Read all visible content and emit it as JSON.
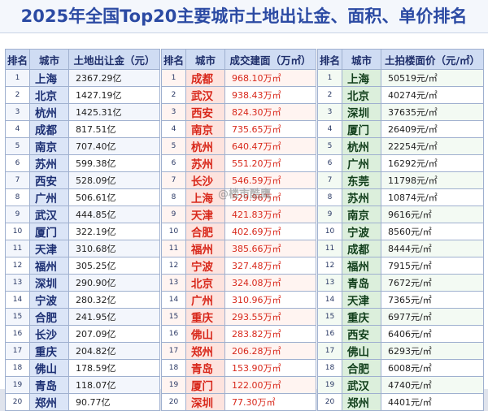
{
  "title": "2025年全国Top20主要城市土地出让金、面积、单价排名",
  "watermark": "@楼市酷鹰",
  "tables": [
    {
      "headers": [
        "排名",
        "城市",
        "土地出让金（元）"
      ],
      "rows": [
        [
          "1",
          "上海",
          "2367.29亿"
        ],
        [
          "2",
          "北京",
          "1427.19亿"
        ],
        [
          "3",
          "杭州",
          "1425.31亿"
        ],
        [
          "4",
          "成都",
          "817.51亿"
        ],
        [
          "5",
          "南京",
          "707.40亿"
        ],
        [
          "6",
          "苏州",
          "599.38亿"
        ],
        [
          "7",
          "西安",
          "528.09亿"
        ],
        [
          "8",
          "广州",
          "506.61亿"
        ],
        [
          "9",
          "武汉",
          "444.85亿"
        ],
        [
          "10",
          "厦门",
          "322.19亿"
        ],
        [
          "11",
          "天津",
          "310.68亿"
        ],
        [
          "12",
          "福州",
          "305.25亿"
        ],
        [
          "13",
          "深圳",
          "290.90亿"
        ],
        [
          "14",
          "宁波",
          "280.32亿"
        ],
        [
          "15",
          "合肥",
          "241.95亿"
        ],
        [
          "16",
          "长沙",
          "207.09亿"
        ],
        [
          "17",
          "重庆",
          "204.82亿"
        ],
        [
          "18",
          "佛山",
          "178.59亿"
        ],
        [
          "19",
          "青岛",
          "118.07亿"
        ],
        [
          "20",
          "郑州",
          "90.77亿"
        ]
      ]
    },
    {
      "headers": [
        "排名",
        "城市",
        "成交建面（万㎡）"
      ],
      "rows": [
        [
          "1",
          "成都",
          "968.10万㎡"
        ],
        [
          "2",
          "武汉",
          "938.43万㎡"
        ],
        [
          "3",
          "西安",
          "824.30万㎡"
        ],
        [
          "4",
          "南京",
          "735.65万㎡"
        ],
        [
          "5",
          "杭州",
          "640.47万㎡"
        ],
        [
          "6",
          "苏州",
          "551.20万㎡"
        ],
        [
          "7",
          "长沙",
          "546.59万㎡"
        ],
        [
          "8",
          "上海",
          "529.96万㎡"
        ],
        [
          "9",
          "天津",
          "421.83万㎡"
        ],
        [
          "10",
          "合肥",
          "402.69万㎡"
        ],
        [
          "11",
          "福州",
          "385.66万㎡"
        ],
        [
          "12",
          "宁波",
          "327.48万㎡"
        ],
        [
          "13",
          "北京",
          "324.08万㎡"
        ],
        [
          "14",
          "广州",
          "310.96万㎡"
        ],
        [
          "15",
          "重庆",
          "293.55万㎡"
        ],
        [
          "16",
          "佛山",
          "283.82万㎡"
        ],
        [
          "17",
          "郑州",
          "206.28万㎡"
        ],
        [
          "18",
          "青岛",
          "153.90万㎡"
        ],
        [
          "19",
          "厦门",
          "122.00万㎡"
        ],
        [
          "20",
          "深圳",
          "77.30万㎡"
        ]
      ]
    },
    {
      "headers": [
        "排名",
        "城市",
        "土拍楼面价（元/㎡）"
      ],
      "rows": [
        [
          "1",
          "上海",
          "50519元/㎡"
        ],
        [
          "2",
          "北京",
          "40274元/㎡"
        ],
        [
          "3",
          "深圳",
          "37635元/㎡"
        ],
        [
          "4",
          "厦门",
          "26409元/㎡"
        ],
        [
          "5",
          "杭州",
          "22254元/㎡"
        ],
        [
          "6",
          "广州",
          "16292元/㎡"
        ],
        [
          "7",
          "东莞",
          "11798元/㎡"
        ],
        [
          "8",
          "苏州",
          "10874元/㎡"
        ],
        [
          "9",
          "南京",
          "9616元/㎡"
        ],
        [
          "10",
          "宁波",
          "8560元/㎡"
        ],
        [
          "11",
          "成都",
          "8444元/㎡"
        ],
        [
          "12",
          "福州",
          "7915元/㎡"
        ],
        [
          "13",
          "青岛",
          "7672元/㎡"
        ],
        [
          "14",
          "天津",
          "7365元/㎡"
        ],
        [
          "15",
          "重庆",
          "6977元/㎡"
        ],
        [
          "16",
          "西安",
          "6406元/㎡"
        ],
        [
          "17",
          "佛山",
          "6293元/㎡"
        ],
        [
          "18",
          "合肥",
          "6008元/㎡"
        ],
        [
          "19",
          "武汉",
          "4740元/㎡"
        ],
        [
          "20",
          "郑州",
          "4401元/㎡"
        ]
      ]
    }
  ]
}
